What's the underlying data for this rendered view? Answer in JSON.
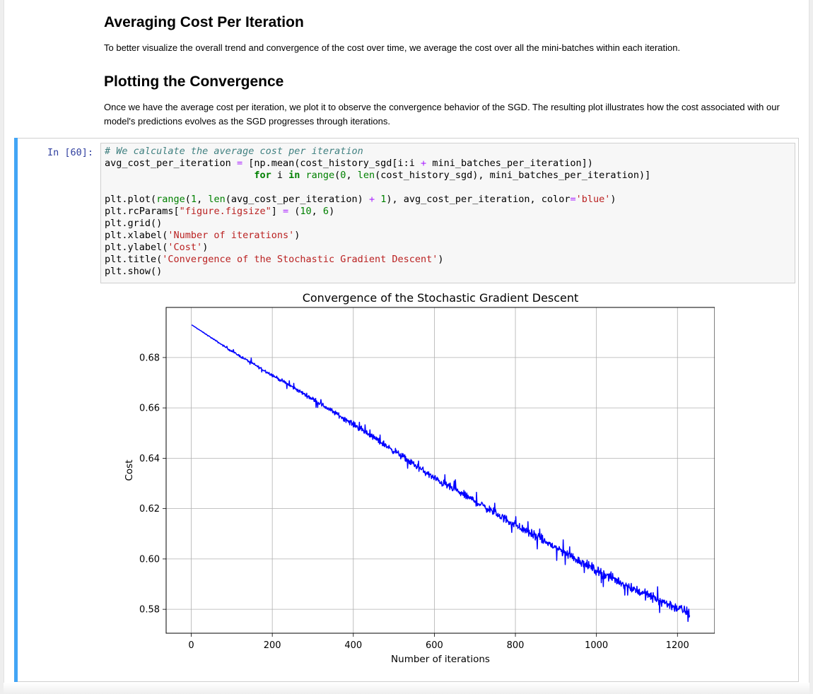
{
  "sections": [
    {
      "heading": "Averaging Cost Per Iteration",
      "text": "To better visualize the overall trend and convergence of the cost over time, we average the cost over all the mini-batches within each iteration."
    },
    {
      "heading": "Plotting the Convergence",
      "text": "Once we have the average cost per iteration, we plot it to observe the convergence behavior of the SGD. The resulting plot illustrates how the cost associated with our model's predictions evolves as the SGD progresses through iterations."
    }
  ],
  "cell": {
    "prompt": "In [60]:",
    "code_lines": [
      "# We calculate the average cost per iteration",
      "avg_cost_per_iteration = [np.mean(cost_history_sgd[i:i + mini_batches_per_iteration])",
      "                          for i in range(0, len(cost_history_sgd), mini_batches_per_iteration)]",
      "",
      "plt.plot(range(1, len(avg_cost_per_iteration) + 1), avg_cost_per_iteration, color='blue')",
      "plt.rcParams[\"figure.figsize\"] = (10, 6)",
      "plt.grid()",
      "plt.xlabel('Number of iterations')",
      "plt.ylabel('Cost')",
      "plt.title('Convergence of the Stochastic Gradient Descent')",
      "plt.show()"
    ]
  },
  "chart_data": {
    "type": "line",
    "title": "Convergence of the Stochastic Gradient Descent",
    "xlabel": "Number of iterations",
    "ylabel": "Cost",
    "xlim": [
      -62,
      1292
    ],
    "ylim": [
      0.5705,
      0.6999
    ],
    "xticks": [
      0,
      200,
      400,
      600,
      800,
      1000,
      1200
    ],
    "xtick_labels": [
      "0",
      "200",
      "400",
      "600",
      "800",
      "1000",
      "1200"
    ],
    "yticks": [
      0.58,
      0.6,
      0.62,
      0.64,
      0.66,
      0.68
    ],
    "ytick_labels": [
      "0.58",
      "0.60",
      "0.62",
      "0.64",
      "0.66",
      "0.68"
    ],
    "grid": true,
    "color": "#0000ff",
    "series": [
      {
        "x": [
          1,
          100,
          200,
          300,
          400,
          500,
          600,
          700,
          800,
          900,
          1000,
          1100,
          1200,
          1230
        ],
        "values": [
          0.693,
          0.6825,
          0.673,
          0.6635,
          0.6535,
          0.643,
          0.632,
          0.623,
          0.6135,
          0.6045,
          0.5955,
          0.5875,
          0.5805,
          0.5785
        ],
        "noise": [
          0.0,
          0.0006,
          0.0009,
          0.0012,
          0.0016,
          0.0019,
          0.0021,
          0.0023,
          0.0025,
          0.0026,
          0.0027,
          0.0028,
          0.003,
          0.003
        ]
      }
    ]
  }
}
